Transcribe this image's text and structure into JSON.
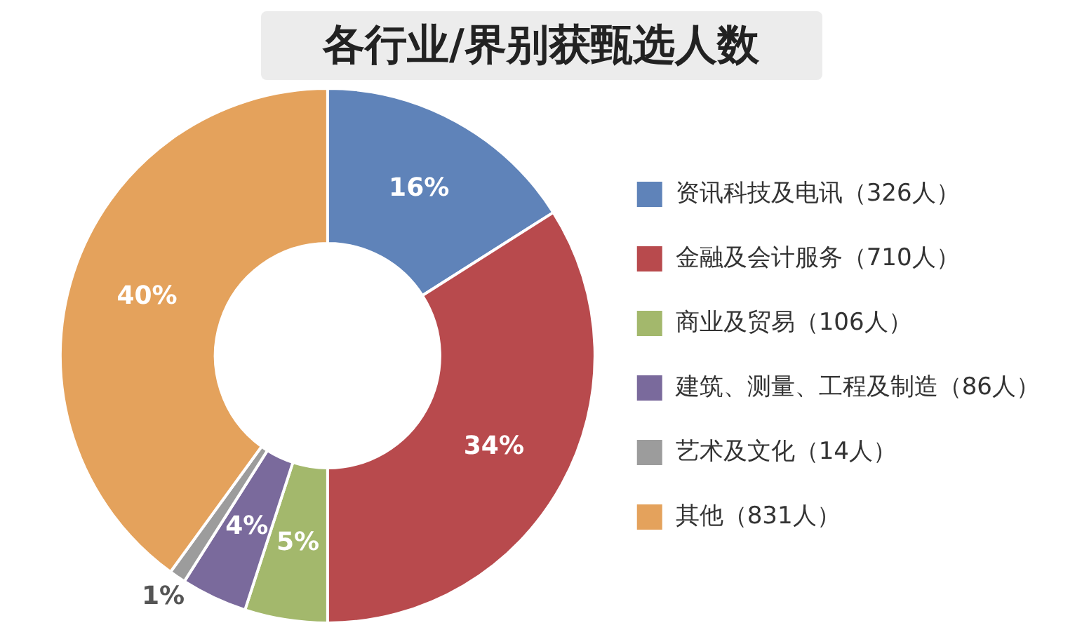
{
  "chart_data": {
    "type": "donut",
    "title": "各行业/界别获甄选人数",
    "categories": [
      "资讯科技及电讯（326人）",
      "金融及会计服务（710人）",
      "商业及贸易（106人）",
      "建筑、测量、工程及制造（86人）",
      "艺术及文化（14人）",
      "其他（831人）"
    ],
    "values": [
      16,
      34,
      5,
      4,
      1,
      40
    ],
    "colors": [
      "#5f83b9",
      "#b84a4d",
      "#a3b86c",
      "#7a6a9c",
      "#9c9c9c",
      "#e4a25c"
    ],
    "value_labels": [
      "16%",
      "34%",
      "5%",
      "4%",
      "1%",
      "40%"
    ],
    "legend": "right"
  }
}
